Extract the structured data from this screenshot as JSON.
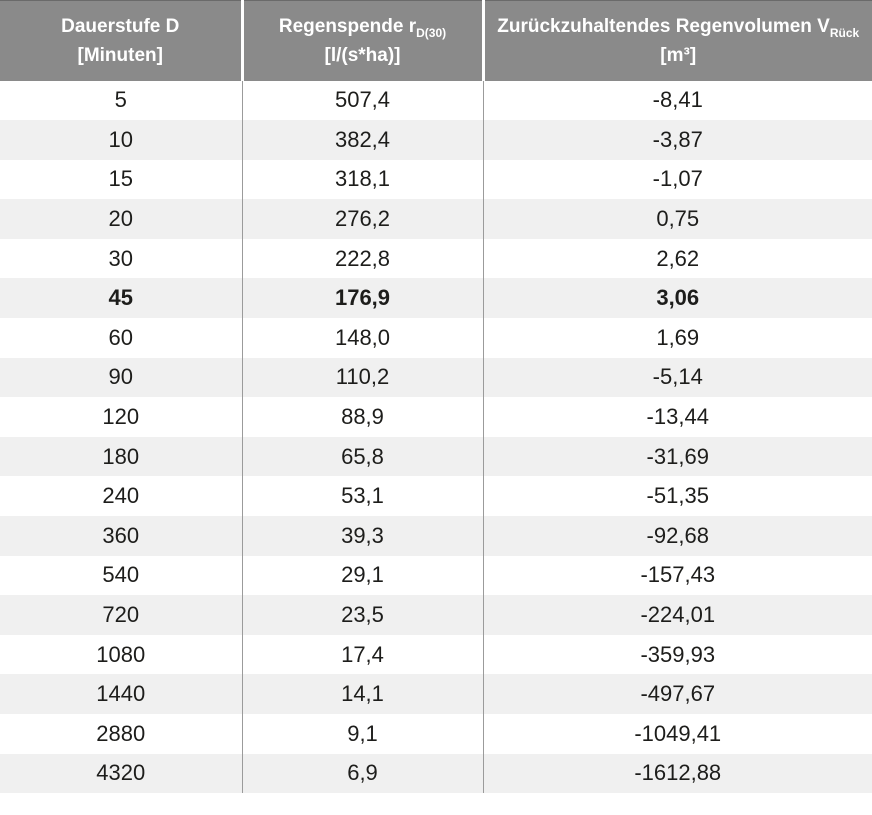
{
  "colors": {
    "header_bg": "#8a8a8a",
    "header_text": "#ffffff",
    "header_divider": "#ffffff",
    "header_top_border": "#6a6a6a",
    "row_bg": "#ffffff",
    "row_alt_bg": "#f0f0f0",
    "body_text": "#1d1d1b",
    "column_divider": "#9b9b9b"
  },
  "table": {
    "header": {
      "col1": {
        "line1": "Dauerstufe D",
        "line2": "[Minuten]"
      },
      "col2": {
        "line1_main": "Regenspende r",
        "line1_sub": "D(30)",
        "line2": "[l/(s*ha)]"
      },
      "col3": {
        "line1_main": "Zurückzuhaltendes Regenvolumen V",
        "line1_sub": "Rück",
        "line2": "[m³]"
      }
    },
    "rows": [
      {
        "dauerstufe": "5",
        "regenspende": "507,4",
        "regenvolumen": "-8,41"
      },
      {
        "dauerstufe": "10",
        "regenspende": "382,4",
        "regenvolumen": "-3,87"
      },
      {
        "dauerstufe": "15",
        "regenspende": "318,1",
        "regenvolumen": "-1,07"
      },
      {
        "dauerstufe": "20",
        "regenspende": "276,2",
        "regenvolumen": "0,75"
      },
      {
        "dauerstufe": "30",
        "regenspende": "222,8",
        "regenvolumen": "2,62"
      },
      {
        "dauerstufe": "45",
        "regenspende": "176,9",
        "regenvolumen": "3,06"
      },
      {
        "dauerstufe": "60",
        "regenspende": "148,0",
        "regenvolumen": "1,69"
      },
      {
        "dauerstufe": "90",
        "regenspende": "110,2",
        "regenvolumen": "-5,14"
      },
      {
        "dauerstufe": "120",
        "regenspende": "88,9",
        "regenvolumen": "-13,44"
      },
      {
        "dauerstufe": "180",
        "regenspende": "65,8",
        "regenvolumen": "-31,69"
      },
      {
        "dauerstufe": "240",
        "regenspende": "53,1",
        "regenvolumen": "-51,35"
      },
      {
        "dauerstufe": "360",
        "regenspende": "39,3",
        "regenvolumen": "-92,68"
      },
      {
        "dauerstufe": "540",
        "regenspende": "29,1",
        "regenvolumen": "-157,43"
      },
      {
        "dauerstufe": "720",
        "regenspende": "23,5",
        "regenvolumen": "-224,01"
      },
      {
        "dauerstufe": "1080",
        "regenspende": "17,4",
        "regenvolumen": "-359,93"
      },
      {
        "dauerstufe": "1440",
        "regenspende": "14,1",
        "regenvolumen": "-497,67"
      },
      {
        "dauerstufe": "2880",
        "regenspende": "9,1",
        "regenvolumen": "-1049,41"
      },
      {
        "dauerstufe": "4320",
        "regenspende": "6,9",
        "regenvolumen": "-1612,88"
      }
    ]
  },
  "chart_data": {
    "type": "table",
    "title": "",
    "columns": [
      "Dauerstufe D [Minuten]",
      "Regenspende rD(30) [l/(s*ha)]",
      "Zurückzuhaltendes Regenvolumen VRück [m³]"
    ],
    "rows": [
      [
        5,
        507.4,
        -8.41
      ],
      [
        10,
        382.4,
        -3.87
      ],
      [
        15,
        318.1,
        -1.07
      ],
      [
        20,
        276.2,
        0.75
      ],
      [
        30,
        222.8,
        2.62
      ],
      [
        45,
        176.9,
        3.06
      ],
      [
        60,
        148.0,
        1.69
      ],
      [
        90,
        110.2,
        -5.14
      ],
      [
        120,
        88.9,
        -13.44
      ],
      [
        180,
        65.8,
        -31.69
      ],
      [
        240,
        53.1,
        -51.35
      ],
      [
        360,
        39.3,
        -92.68
      ],
      [
        540,
        29.1,
        -157.43
      ],
      [
        720,
        23.5,
        -224.01
      ],
      [
        1080,
        17.4,
        -359.93
      ],
      [
        1440,
        14.1,
        -497.67
      ],
      [
        2880,
        9.1,
        -1049.41
      ],
      [
        4320,
        6.9,
        -1612.88
      ]
    ],
    "highlighted_row": [
      45,
      176.9,
      3.06
    ],
    "layout_hints": {
      "highlighted_row_style": "bold",
      "row_striping": "white / light-gray alternating",
      "decimal_separator": "comma"
    }
  }
}
